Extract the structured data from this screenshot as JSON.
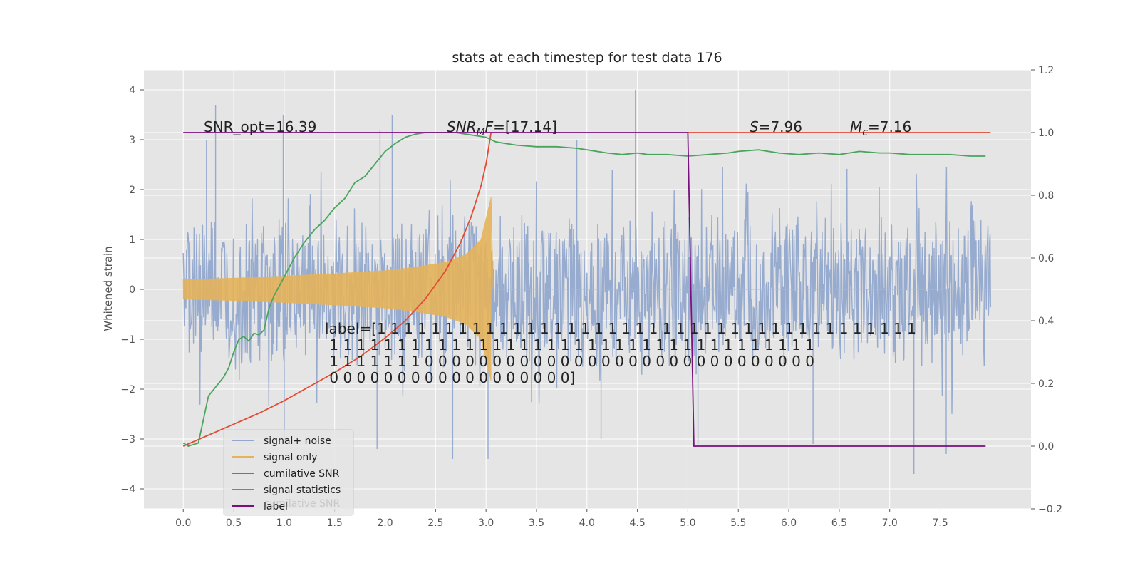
{
  "chart_data": {
    "type": "line",
    "title": "stats at each timestep for test data 176",
    "xlabel": "",
    "ylabel": "Whitened strain",
    "y2label": "",
    "xlim": [
      -0.39,
      8.4
    ],
    "ylim": [
      -4.4,
      4.4
    ],
    "y2lim": [
      -0.2,
      1.2
    ],
    "xticks": [
      "0.0",
      "0.5",
      "1.0",
      "1.5",
      "2.0",
      "2.5",
      "3.0",
      "3.5",
      "4.0",
      "4.5",
      "5.0",
      "5.5",
      "6.0",
      "6.5",
      "7.0",
      "7.5"
    ],
    "yticks": [
      "4",
      "3",
      "2",
      "1",
      "0",
      "−1",
      "−2",
      "−3",
      "−4"
    ],
    "y2ticks": [
      "1.2",
      "1.0",
      "0.8",
      "0.6",
      "0.4",
      "0.2",
      "0.0",
      "−0.2"
    ],
    "background": "#e5e5e5",
    "grid": true,
    "legend_position": "lower-left",
    "colors": {
      "signal_noise": "#92a8cd",
      "signal_only": "#e4b35a",
      "cumulative_snr": "#e24a33",
      "signal_statistics": "#4aa45d",
      "label": "#7a0f80"
    },
    "series": [
      {
        "name": "signal+ noise",
        "axis": "left",
        "note": "noise band approx ±1.8 with spikes",
        "envelope_x": [
          0.0,
          8.0
        ],
        "spikes": [
          [
            0.23,
            3.0
          ],
          [
            0.32,
            3.7
          ],
          [
            0.99,
            3.5
          ],
          [
            1.0,
            -3.1
          ],
          [
            1.95,
            3.2
          ],
          [
            2.07,
            3.5
          ],
          [
            4.48,
            4.0
          ],
          [
            1.92,
            -3.2
          ],
          [
            2.67,
            -3.4
          ],
          [
            3.02,
            -3.4
          ],
          [
            6.24,
            -3.1
          ],
          [
            7.24,
            -3.7
          ],
          [
            7.56,
            -3.3
          ],
          [
            5.1,
            -3.1
          ],
          [
            4.14,
            -3.0
          ],
          [
            3.9,
            3.0
          ]
        ]
      },
      {
        "name": "signal only",
        "axis": "left",
        "x": [
          0.0,
          0.5,
          1.0,
          1.5,
          2.0,
          2.3,
          2.6,
          2.8,
          2.95,
          3.05,
          3.07
        ],
        "y": [
          0.2,
          0.23,
          0.27,
          0.32,
          0.38,
          0.45,
          0.55,
          0.7,
          1.0,
          1.85,
          0.0
        ]
      },
      {
        "name": "cumilative SNR",
        "axis": "right",
        "x": [
          0.0,
          0.25,
          0.5,
          0.75,
          1.0,
          1.25,
          1.5,
          1.75,
          2.0,
          2.2,
          2.4,
          2.6,
          2.75,
          2.85,
          2.95,
          3.0,
          3.05
        ],
        "y": [
          0.0,
          0.035,
          0.07,
          0.105,
          0.145,
          0.19,
          0.235,
          0.285,
          0.345,
          0.4,
          0.47,
          0.56,
          0.65,
          0.73,
          0.83,
          0.9,
          1.0
        ]
      },
      {
        "name": "signal statistics",
        "axis": "right",
        "x": [
          0.0,
          0.05,
          0.15,
          0.25,
          0.3,
          0.4,
          0.45,
          0.5,
          0.55,
          0.6,
          0.65,
          0.7,
          0.75,
          0.8,
          0.85,
          0.9,
          1.0,
          1.1,
          1.2,
          1.3,
          1.4,
          1.5,
          1.6,
          1.7,
          1.8,
          1.9,
          2.0,
          2.1,
          2.2,
          2.3,
          2.4,
          2.5,
          2.6,
          2.7,
          2.8,
          2.9,
          3.0,
          3.1,
          3.3,
          3.5,
          3.7,
          3.9,
          4.0,
          4.2,
          4.35,
          4.5,
          4.6,
          4.8,
          5.0,
          5.2,
          5.4,
          5.5,
          5.7,
          5.9,
          6.1,
          6.3,
          6.5,
          6.7,
          6.9,
          7.0,
          7.2,
          7.4,
          7.6,
          7.8,
          7.95
        ],
        "y": [
          0.01,
          0.0,
          0.01,
          0.16,
          0.18,
          0.22,
          0.25,
          0.3,
          0.34,
          0.35,
          0.335,
          0.36,
          0.355,
          0.37,
          0.44,
          0.48,
          0.54,
          0.6,
          0.65,
          0.69,
          0.72,
          0.76,
          0.79,
          0.84,
          0.86,
          0.9,
          0.94,
          0.965,
          0.985,
          0.995,
          1.0,
          1.0,
          1.0,
          1.0,
          0.995,
          0.99,
          0.985,
          0.97,
          0.96,
          0.955,
          0.955,
          0.95,
          0.945,
          0.935,
          0.93,
          0.935,
          0.93,
          0.93,
          0.925,
          0.93,
          0.935,
          0.94,
          0.945,
          0.935,
          0.93,
          0.935,
          0.93,
          0.94,
          0.935,
          0.935,
          0.93,
          0.93,
          0.93,
          0.925,
          0.925
        ]
      },
      {
        "name": "label",
        "axis": "right",
        "x": [
          0.0,
          5.0,
          5.06,
          7.95
        ],
        "y": [
          1.0,
          1.0,
          0.0,
          0.0
        ]
      }
    ],
    "extra_lines": [
      {
        "axis": "right",
        "color": "#e24a33",
        "x": [
          5.0,
          8.0
        ],
        "y": [
          1.0,
          1.0
        ]
      }
    ],
    "annotations": [
      {
        "id": "snr_opt",
        "text": "SNR_opt=16.39"
      },
      {
        "id": "snr_mf_pre",
        "text": "SNR"
      },
      {
        "id": "snr_mf_sub",
        "text": "M"
      },
      {
        "id": "snr_mf_f",
        "text": "F"
      },
      {
        "id": "snr_mf_post",
        "text": "=[17.14]"
      },
      {
        "id": "s_stat_sym",
        "text": "S"
      },
      {
        "id": "s_stat_val",
        "text": "=7.96"
      },
      {
        "id": "mc_sym",
        "text": "M"
      },
      {
        "id": "mc_sub",
        "text": "c"
      },
      {
        "id": "mc_val",
        "text": "=7.16"
      }
    ],
    "label_text": [
      "label=[1 1 1 1 1 1 1 1 1 1 1 1 1 1 1 1 1 1 1 1 1 1 1 1 1 1 1 1 1 1 1 1 1 1 1 1 1 1 1 1",
      " 1 1 1 1 1 1 1 1 1 1 1 1 1 1 1 1 1 1 1 1 1 1 1 1 1 1 1 1 1 1 1 1 1 1 1 1",
      " 1 1 1 1 1 1 1 0 0 0 0 0 0 0 0 0 0 0 0 0 0 0 0 0 0 0 0 0 0 0 0 0 0 0 0 0",
      " 0 0 0 0 0 0 0 0 0 0 0 0 0 0 0 0 0 0]"
    ],
    "legend": {
      "entries": [
        "signal+ noise",
        "signal only",
        "cumilative SNR",
        "signal statistics",
        "label"
      ],
      "ghost_text": "cumilative SNR"
    }
  }
}
